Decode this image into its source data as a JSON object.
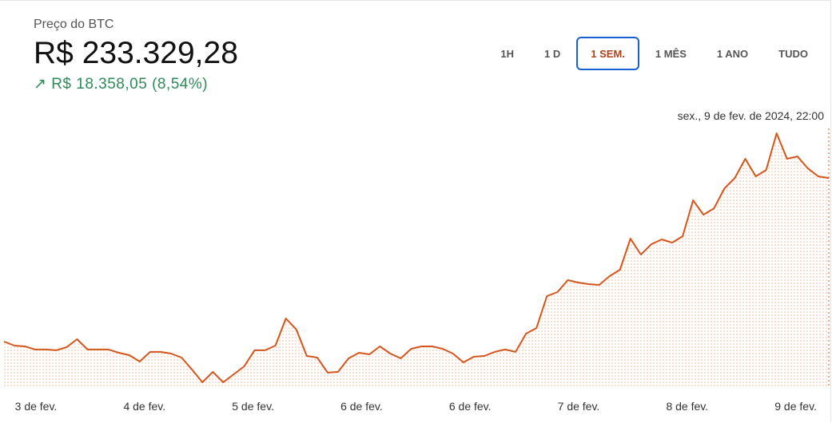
{
  "header": {
    "title": "Preço do BTC",
    "price": "R$ 233.329,28",
    "change": "↗ R$ 18.358,05 (8,54%)"
  },
  "ranges": {
    "buttons": [
      "1H",
      "1 D",
      "1 SEM.",
      "1 MÊS",
      "1 ANO",
      "TUDO"
    ],
    "selected": 2
  },
  "chart_data": {
    "type": "line",
    "color": "#d4561b",
    "hover_label": "sex., 9 de fev. de 2024, 22:00",
    "xticks": [
      "3 de fev.",
      "4 de fev.",
      "5 de fev.",
      "6 de fev.",
      "6 de fev.",
      "7 de fev.",
      "8 de fev.",
      "9 de fev."
    ],
    "values": [
      214970,
      214520,
      214430,
      214080,
      214080,
      213990,
      214340,
      215240,
      214080,
      214080,
      214080,
      213720,
      213450,
      212730,
      213810,
      213810,
      213630,
      213180,
      211840,
      210400,
      211570,
      210400,
      211300,
      212190,
      213990,
      213990,
      214520,
      217570,
      216320,
      213360,
      213180,
      211480,
      211570,
      213090,
      213720,
      213540,
      214430,
      213630,
      213090,
      214160,
      214430,
      214430,
      214160,
      213630,
      212640,
      213270,
      213360,
      213810,
      214080,
      213810,
      215870,
      216490,
      220080,
      220530,
      221870,
      221600,
      221420,
      221330,
      222320,
      223040,
      226530,
      224740,
      225900,
      226440,
      226080,
      226800,
      230830,
      229220,
      229930,
      232170,
      233340,
      235490,
      233520,
      234240,
      238360,
      235490,
      235760,
      234410,
      233520,
      233329.28
    ]
  }
}
